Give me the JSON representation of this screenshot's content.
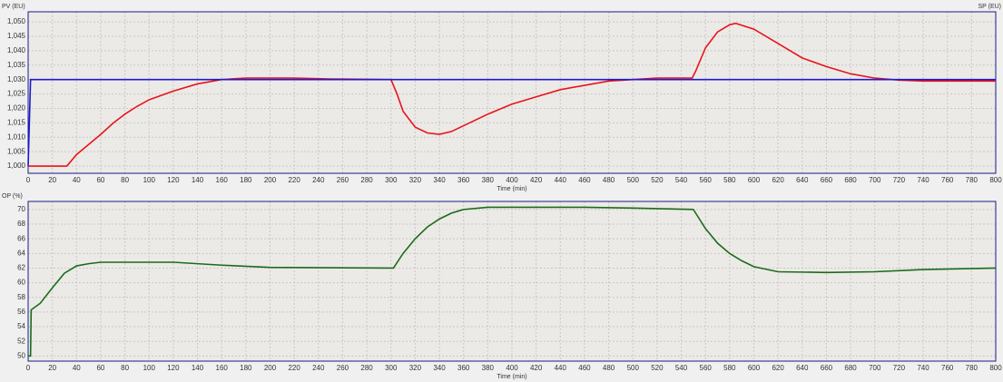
{
  "chart_data": [
    {
      "type": "line",
      "y_label": "PV (EU)",
      "y_label_right": "SP (EU)",
      "x_label": "Time (min)",
      "xlim": [
        0,
        800
      ],
      "xticks": [
        0,
        20,
        40,
        60,
        80,
        100,
        120,
        140,
        160,
        180,
        200,
        220,
        240,
        260,
        280,
        300,
        320,
        340,
        360,
        380,
        400,
        420,
        440,
        460,
        480,
        500,
        520,
        540,
        560,
        580,
        600,
        620,
        640,
        660,
        680,
        700,
        720,
        740,
        760,
        780,
        800
      ],
      "ylim": [
        0.9975,
        1.0535
      ],
      "yticks": [
        {
          "value": 1.0,
          "label": "1,000"
        },
        {
          "value": 1.005,
          "label": "1,005"
        },
        {
          "value": 1.01,
          "label": "1,010"
        },
        {
          "value": 1.015,
          "label": "1,015"
        },
        {
          "value": 1.02,
          "label": "1,020"
        },
        {
          "value": 1.025,
          "label": "1,025"
        },
        {
          "value": 1.03,
          "label": "1,030"
        },
        {
          "value": 1.035,
          "label": "1,035"
        },
        {
          "value": 1.04,
          "label": "1,040"
        },
        {
          "value": 1.045,
          "label": "1,045"
        },
        {
          "value": 1.05,
          "label": "1,050"
        }
      ],
      "grid": true,
      "series": [
        {
          "name": "PV",
          "color": "#e8141c",
          "x": [
            0,
            32,
            40,
            50,
            60,
            70,
            80,
            90,
            100,
            120,
            140,
            160,
            180,
            220,
            250,
            300,
            305,
            310,
            320,
            330,
            340,
            350,
            360,
            380,
            400,
            420,
            440,
            460,
            480,
            500,
            520,
            549,
            552,
            560,
            570,
            580,
            585,
            600,
            620,
            640,
            660,
            680,
            700,
            720,
            740,
            800
          ],
          "values": [
            1.0,
            1.0,
            1.004,
            1.0075,
            1.011,
            1.0148,
            1.018,
            1.0207,
            1.023,
            1.026,
            1.0285,
            1.03,
            1.0305,
            1.0305,
            1.0302,
            1.03,
            1.025,
            1.019,
            1.0135,
            1.0115,
            1.011,
            1.012,
            1.014,
            1.018,
            1.0215,
            1.024,
            1.0265,
            1.028,
            1.0295,
            1.03,
            1.0305,
            1.0305,
            1.033,
            1.041,
            1.0465,
            1.049,
            1.0495,
            1.0475,
            1.0425,
            1.0375,
            1.0345,
            1.032,
            1.0305,
            1.0298,
            1.0295,
            1.0295
          ]
        },
        {
          "name": "SP",
          "color": "#1a1ad0",
          "x": [
            0,
            2,
            800
          ],
          "values": [
            1.0,
            1.03,
            1.03
          ]
        }
      ]
    },
    {
      "type": "line",
      "y_label": "OP (%)",
      "x_label": "Time (min)",
      "xlim": [
        0,
        800
      ],
      "xticks": [
        0,
        20,
        40,
        60,
        80,
        100,
        120,
        140,
        160,
        180,
        200,
        220,
        240,
        260,
        280,
        300,
        320,
        340,
        360,
        380,
        400,
        420,
        440,
        460,
        480,
        500,
        520,
        540,
        560,
        580,
        600,
        620,
        640,
        660,
        680,
        700,
        720,
        740,
        760,
        780,
        800
      ],
      "ylim": [
        49.3,
        71.1
      ],
      "yticks": [
        50,
        52,
        54,
        56,
        58,
        60,
        62,
        64,
        66,
        68,
        70
      ],
      "grid": true,
      "series": [
        {
          "name": "OP",
          "color": "#1b6b1b",
          "x": [
            0,
            2,
            2.5,
            10,
            20,
            30,
            40,
            50,
            60,
            80,
            120,
            160,
            200,
            300,
            302,
            310,
            320,
            330,
            340,
            350,
            360,
            380,
            460,
            500,
            550,
            560,
            570,
            580,
            590,
            600,
            620,
            660,
            700,
            740,
            800
          ],
          "values": [
            50,
            50,
            56.3,
            57.2,
            59.3,
            61.3,
            62.3,
            62.6,
            62.8,
            62.8,
            62.8,
            62.4,
            62.1,
            62.0,
            62.0,
            64.0,
            66.0,
            67.6,
            68.7,
            69.5,
            70.0,
            70.3,
            70.3,
            70.2,
            70.0,
            67.4,
            65.4,
            64.0,
            63.0,
            62.2,
            61.5,
            61.4,
            61.5,
            61.8,
            62.0
          ]
        }
      ]
    }
  ]
}
